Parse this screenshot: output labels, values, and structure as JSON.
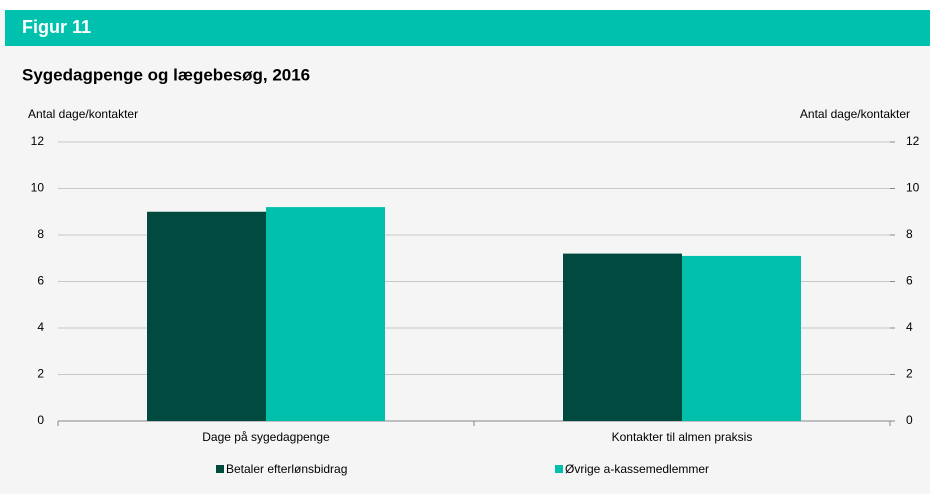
{
  "header": {
    "title": "Figur 11"
  },
  "chart_data": {
    "type": "bar",
    "title": "Sygedagpenge og lægebesøg, 2016",
    "y_label": "Antal dage/kontakter",
    "y2_label": "Antal dage/kontakter",
    "categories": [
      "Dage på sygedagpenge",
      "Kontakter til almen praksis"
    ],
    "series": [
      {
        "name": "Betaler efterlønsbidrag",
        "color": "#004a40",
        "values": [
          9.0,
          7.2
        ]
      },
      {
        "name": "Øvrige a-kassemedlemmer",
        "color": "#00bfab",
        "values": [
          9.2,
          7.1
        ]
      }
    ],
    "ylim": [
      0,
      12
    ],
    "yticks": [
      0,
      2,
      4,
      6,
      8,
      10,
      12
    ],
    "y2lim": [
      0,
      12
    ],
    "y2ticks": [
      0,
      2,
      4,
      6,
      8,
      10,
      12
    ],
    "grid": true,
    "legend": "bottom"
  }
}
